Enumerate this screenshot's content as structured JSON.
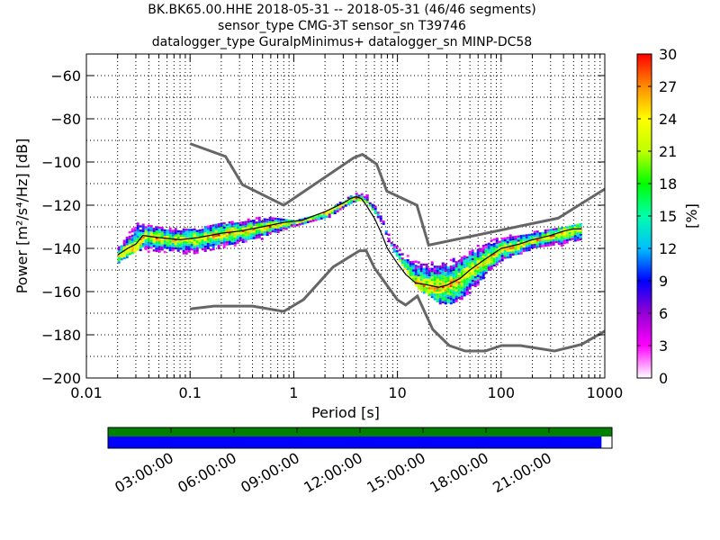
{
  "title_lines": [
    "BK.BK65.00.HHE   2018-05-31 -- 2018-05-31  (46/46 segments)",
    "sensor_type CMG-3T sensor_sn T39746",
    "datalogger_type GuralpMinimus+ datalogger_sn MINP-DC58"
  ],
  "chart_data": [
    {
      "type": "heatmap",
      "title": "BK.BK65.00.HHE   2018-05-31 -- 2018-05-31  (46/46 segments)",
      "xlabel": "Period [s]",
      "ylabel": "Power [m²/s⁴/Hz] [dB]",
      "xscale": "log",
      "xlim": [
        0.01,
        1000
      ],
      "ylim": [
        -200,
        -50
      ],
      "xticks": [
        {
          "value": 0.01,
          "label": "0.01"
        },
        {
          "value": 0.1,
          "label": "0.1"
        },
        {
          "value": 1,
          "label": "1"
        },
        {
          "value": 10,
          "label": "10"
        },
        {
          "value": 100,
          "label": "100"
        },
        {
          "value": 1000,
          "label": "1000"
        }
      ],
      "yticks": [
        -60,
        -80,
        -100,
        -120,
        -140,
        -160,
        -180,
        -200
      ],
      "grid": "dotted",
      "colorbar": {
        "label": "[%]",
        "min": 0,
        "max": 30,
        "ticks": [
          0,
          3,
          6,
          9,
          12,
          15,
          18,
          21,
          24,
          27,
          30
        ],
        "colormap": "pqlx",
        "colors": [
          "#ffffff",
          "#ff00ff",
          "#9400d3",
          "#0000ff",
          "#00bfff",
          "#00ffaa",
          "#00ff00",
          "#bfff00",
          "#ffff00",
          "#ff8c00",
          "#ff0000"
        ]
      },
      "mean_psd": {
        "name": "mean",
        "color": "#000000",
        "x": [
          0.02,
          0.025,
          0.03,
          0.035,
          0.05,
          0.08,
          0.12,
          0.2,
          0.3,
          0.5,
          0.8,
          1.2,
          2,
          3,
          3.5,
          4,
          4.5,
          5,
          6,
          7,
          8,
          10,
          12,
          15,
          20,
          25,
          30,
          40,
          50,
          70,
          100,
          150,
          200,
          300,
          400,
          500,
          600
        ],
        "y": [
          -143,
          -140,
          -138,
          -134,
          -135,
          -136,
          -135,
          -133,
          -132,
          -130,
          -128,
          -127,
          -123,
          -119,
          -117,
          -116,
          -117,
          -120,
          -126,
          -133,
          -140,
          -147,
          -152,
          -156,
          -157,
          -158,
          -157,
          -154,
          -150,
          -145,
          -140,
          -138,
          -136,
          -134,
          -132,
          -131,
          -131
        ]
      },
      "density_envelope": {
        "upper": {
          "x": [
            0.02,
            0.03,
            0.05,
            0.1,
            0.2,
            0.5,
            1,
            2,
            3,
            4,
            5,
            7,
            8,
            10,
            15,
            25,
            40,
            60,
            100,
            200,
            400,
            600
          ],
          "y": [
            -138,
            -128,
            -130,
            -131,
            -128,
            -125,
            -127,
            -123,
            -117,
            -114,
            -115,
            -125,
            -133,
            -140,
            -146,
            -146,
            -142,
            -138,
            -134,
            -132,
            -130,
            -128
          ]
        },
        "lower": {
          "x": [
            0.02,
            0.03,
            0.05,
            0.1,
            0.2,
            0.5,
            1,
            2,
            3,
            4,
            5,
            7,
            8,
            10,
            15,
            25,
            35,
            50,
            70,
            100,
            200,
            400,
            600
          ],
          "y": [
            -146,
            -141,
            -141,
            -142,
            -140,
            -135,
            -129,
            -126,
            -121,
            -118,
            -119,
            -128,
            -136,
            -145,
            -158,
            -165,
            -165,
            -160,
            -152,
            -145,
            -140,
            -138,
            -136
          ]
        }
      },
      "noise_models": [
        {
          "name": "NHNM",
          "color": "#666666",
          "x": [
            0.1,
            0.22,
            0.32,
            0.8,
            3.8,
            4.6,
            6.3,
            7.9,
            15.4,
            20,
            354.8,
            1000
          ],
          "y": [
            -91.5,
            -97.4,
            -110.5,
            -120,
            -98,
            -96.5,
            -101,
            -113.5,
            -120,
            -138.5,
            -126,
            -112.5
          ]
        },
        {
          "name": "NLNM",
          "color": "#666666",
          "x": [
            0.1,
            0.17,
            0.4,
            0.8,
            1.24,
            2.4,
            4.3,
            5,
            6,
            10,
            12,
            15.6,
            21.9,
            31.6,
            45,
            70,
            101,
            154,
            328,
            600,
            1000
          ],
          "y": [
            -168,
            -166.7,
            -166.7,
            -169.2,
            -163.7,
            -148.6,
            -141.1,
            -141.1,
            -149,
            -163.8,
            -166.2,
            -162.1,
            -177.5,
            -185,
            -187.5,
            -187.5,
            -185,
            -185,
            -187.5,
            -184.4,
            -178.3
          ]
        }
      ]
    },
    {
      "type": "timeline",
      "ticks": [
        "03:00:00",
        "06:00:00",
        "09:00:00",
        "12:00:00",
        "15:00:00",
        "18:00:00",
        "21:00:00"
      ],
      "tick_hours": [
        3,
        6,
        9,
        12,
        15,
        18,
        21
      ],
      "range_hours": [
        0,
        24
      ],
      "bars": [
        {
          "name": "data-coverage",
          "color": "#008000",
          "start_hour": 0,
          "end_hour": 24
        },
        {
          "name": "psd-segments",
          "color": "#0000ff",
          "start_hour": 0,
          "end_hour": 23.5
        }
      ]
    }
  ]
}
